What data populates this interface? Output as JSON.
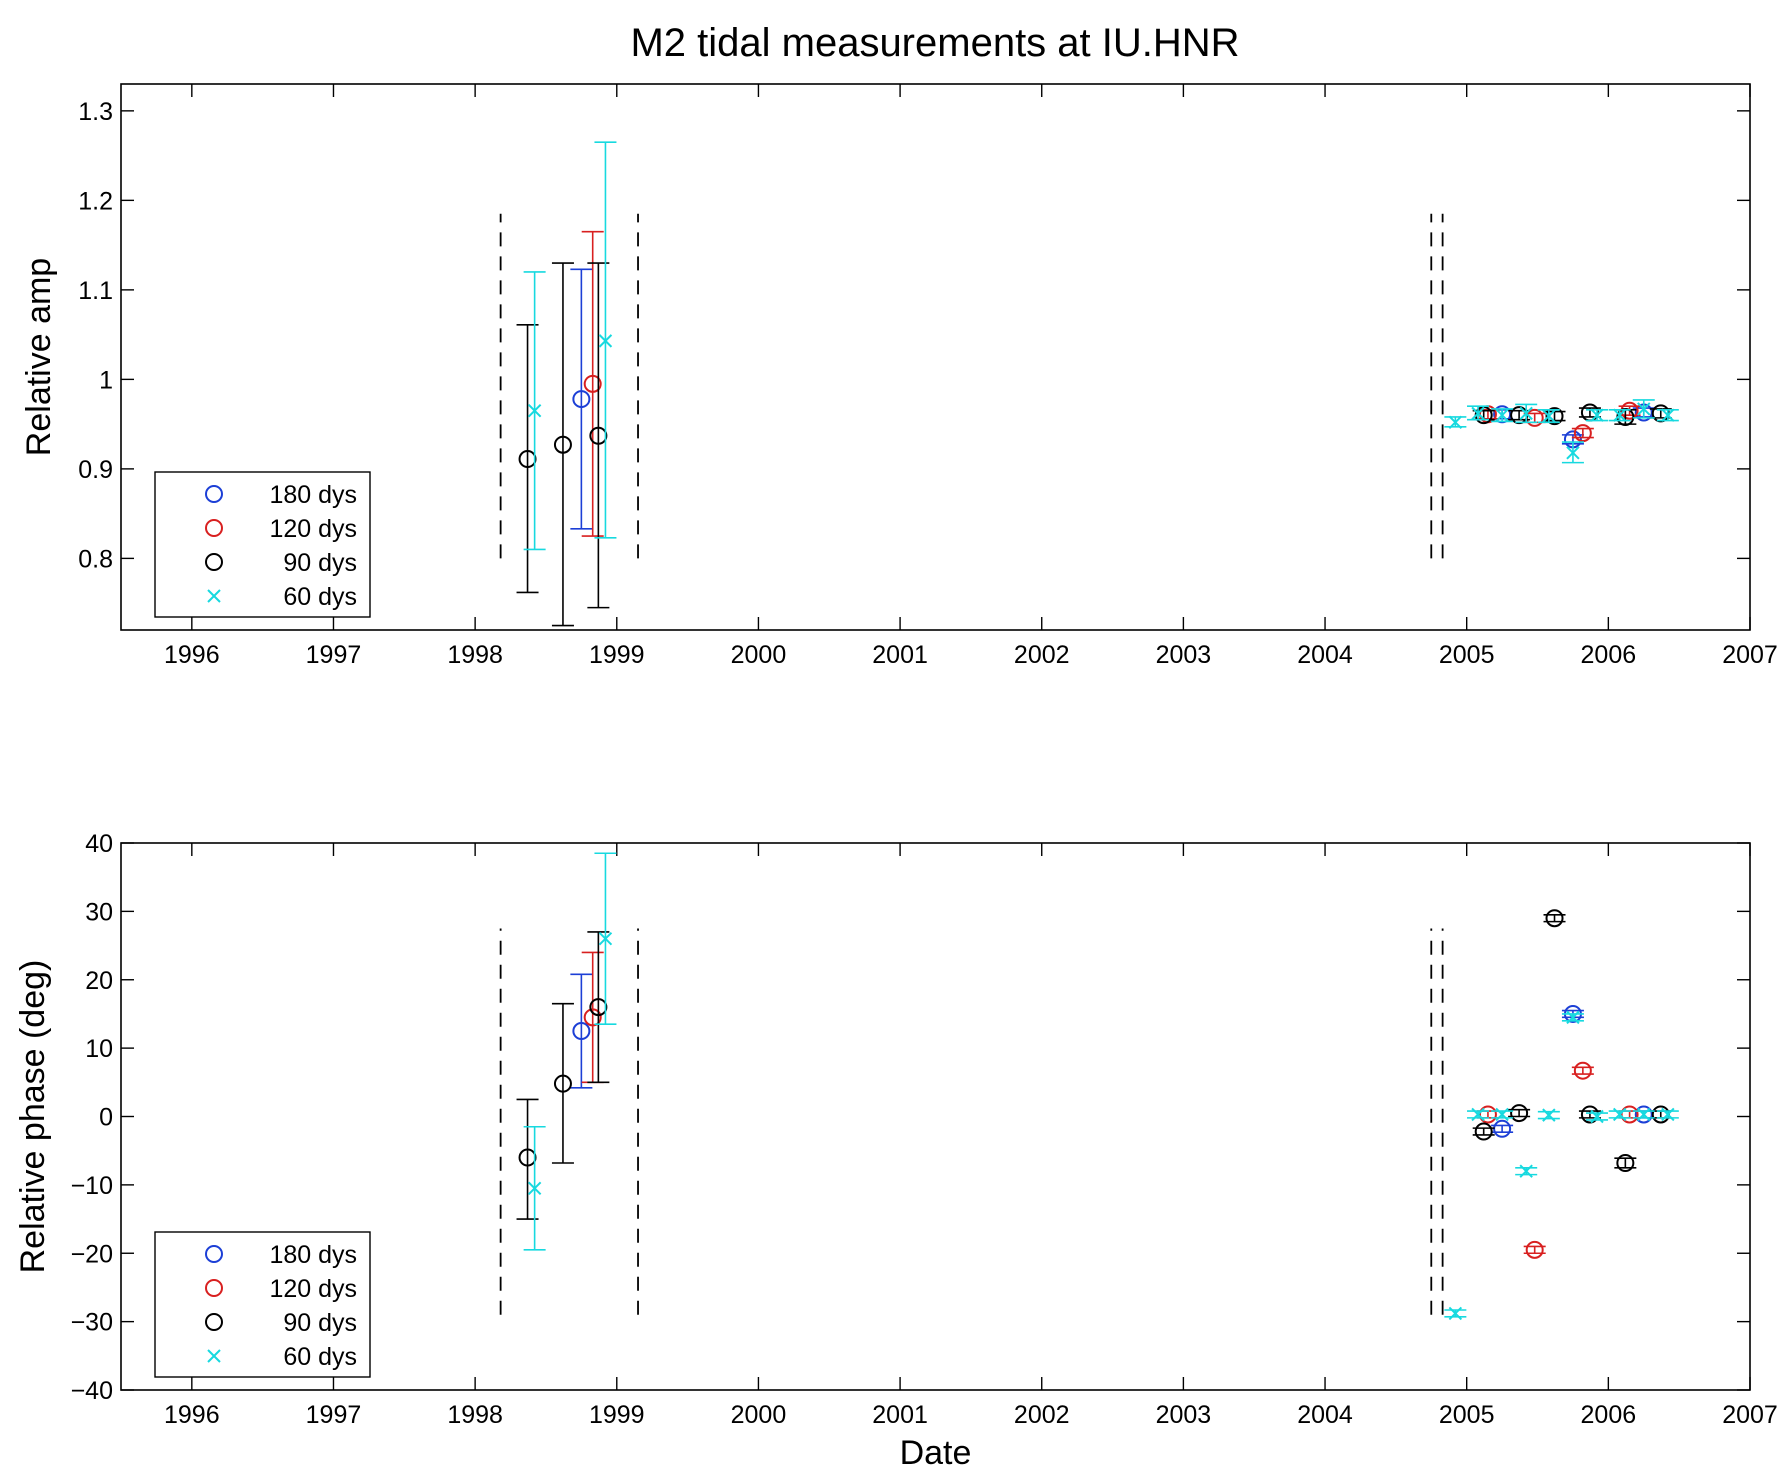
{
  "title": "M2 tidal measurements at IU.HNR",
  "colors": {
    "180 dys": "#1c3fd6",
    "120 dys": "#d82020",
    "90 dys": "#000000",
    "60 dys": "#17d9df"
  },
  "chart_data": [
    {
      "type": "scatter",
      "ylabel": "Relative amp",
      "xlabel": "",
      "xlim": [
        1995.5,
        2007
      ],
      "ylim": [
        0.72,
        1.33
      ],
      "xticks": [
        1996,
        1997,
        1998,
        1999,
        2000,
        2001,
        2002,
        2003,
        2004,
        2005,
        2006,
        2007
      ],
      "yticks": [
        0.8,
        0.9,
        1,
        1.1,
        1.2,
        1.3
      ],
      "ytick_labels": [
        "0.8",
        "0.9",
        "1",
        "1.1",
        "1.2",
        "1.3"
      ],
      "legend": [
        "180 dys",
        "120 dys",
        "90 dys",
        "60 dys"
      ],
      "legend_position": "lower-left",
      "error_bars": true,
      "vlines": [
        {
          "x": 1998.18,
          "y": [
            0.8,
            1.185
          ]
        },
        {
          "x": 1999.15,
          "y": [
            0.8,
            1.185
          ]
        },
        {
          "x": 2004.75,
          "y": [
            0.8,
            1.185
          ]
        },
        {
          "x": 2004.83,
          "y": [
            0.8,
            1.185
          ]
        }
      ],
      "series": [
        {
          "name": "180 dys",
          "marker": "o",
          "points": [
            {
              "x": 1998.75,
              "y": 0.978,
              "lo": 0.833,
              "hi": 1.123
            },
            {
              "x": 2005.25,
              "y": 0.961,
              "lo": 0.956,
              "hi": 0.966
            },
            {
              "x": 2005.75,
              "y": 0.933,
              "lo": 0.928,
              "hi": 0.938
            },
            {
              "x": 2006.25,
              "y": 0.963,
              "lo": 0.958,
              "hi": 0.968
            }
          ]
        },
        {
          "name": "120 dys",
          "marker": "o",
          "points": [
            {
              "x": 1998.83,
              "y": 0.995,
              "lo": 0.825,
              "hi": 1.165
            },
            {
              "x": 2005.15,
              "y": 0.961,
              "lo": 0.956,
              "hi": 0.966
            },
            {
              "x": 2005.48,
              "y": 0.957,
              "lo": 0.952,
              "hi": 0.962
            },
            {
              "x": 2005.82,
              "y": 0.94,
              "lo": 0.935,
              "hi": 0.945
            },
            {
              "x": 2006.15,
              "y": 0.965,
              "lo": 0.96,
              "hi": 0.97
            }
          ]
        },
        {
          "name": "90 dys",
          "marker": "o",
          "points": [
            {
              "x": 1998.37,
              "y": 0.911,
              "lo": 0.762,
              "hi": 1.061
            },
            {
              "x": 1998.62,
              "y": 0.927,
              "lo": 0.725,
              "hi": 1.13
            },
            {
              "x": 1998.87,
              "y": 0.937,
              "lo": 0.745,
              "hi": 1.13
            },
            {
              "x": 2005.12,
              "y": 0.96,
              "lo": 0.955,
              "hi": 0.965
            },
            {
              "x": 2005.37,
              "y": 0.96,
              "lo": 0.955,
              "hi": 0.965
            },
            {
              "x": 2005.62,
              "y": 0.959,
              "lo": 0.954,
              "hi": 0.964
            },
            {
              "x": 2005.87,
              "y": 0.963,
              "lo": 0.958,
              "hi": 0.968
            },
            {
              "x": 2006.12,
              "y": 0.958,
              "lo": 0.95,
              "hi": 0.966
            },
            {
              "x": 2006.37,
              "y": 0.962,
              "lo": 0.957,
              "hi": 0.967
            }
          ]
        },
        {
          "name": "60 dys",
          "marker": "x",
          "points": [
            {
              "x": 1998.42,
              "y": 0.965,
              "lo": 0.81,
              "hi": 1.12
            },
            {
              "x": 1998.92,
              "y": 1.043,
              "lo": 0.823,
              "hi": 1.265
            },
            {
              "x": 2004.92,
              "y": 0.952,
              "lo": 0.947,
              "hi": 0.958
            },
            {
              "x": 2005.08,
              "y": 0.962,
              "lo": 0.955,
              "hi": 0.97
            },
            {
              "x": 2005.25,
              "y": 0.96,
              "lo": 0.953,
              "hi": 0.967
            },
            {
              "x": 2005.42,
              "y": 0.962,
              "lo": 0.952,
              "hi": 0.972
            },
            {
              "x": 2005.58,
              "y": 0.959,
              "lo": 0.952,
              "hi": 0.966
            },
            {
              "x": 2005.75,
              "y": 0.918,
              "lo": 0.907,
              "hi": 0.93
            },
            {
              "x": 2005.92,
              "y": 0.96,
              "lo": 0.954,
              "hi": 0.966
            },
            {
              "x": 2006.08,
              "y": 0.96,
              "lo": 0.954,
              "hi": 0.966
            },
            {
              "x": 2006.25,
              "y": 0.967,
              "lo": 0.957,
              "hi": 0.977
            },
            {
              "x": 2006.42,
              "y": 0.96,
              "lo": 0.954,
              "hi": 0.966
            }
          ]
        }
      ]
    },
    {
      "type": "scatter",
      "ylabel": "Relative phase (deg)",
      "xlabel": "Date",
      "xlim": [
        1995.5,
        2007
      ],
      "ylim": [
        -40,
        40
      ],
      "xticks": [
        1996,
        1997,
        1998,
        1999,
        2000,
        2001,
        2002,
        2003,
        2004,
        2005,
        2006,
        2007
      ],
      "yticks": [
        -40,
        -30,
        -20,
        -10,
        0,
        10,
        20,
        30,
        40
      ],
      "ytick_labels": [
        "−40",
        "−30",
        "−20",
        "−10",
        "0",
        "10",
        "20",
        "30",
        "40"
      ],
      "legend": [
        "180 dys",
        "120 dys",
        "90 dys",
        "60 dys"
      ],
      "legend_position": "lower-left",
      "error_bars": true,
      "vlines": [
        {
          "x": 1998.18,
          "y": [
            -29,
            27.5
          ]
        },
        {
          "x": 1999.15,
          "y": [
            -29,
            27.5
          ]
        },
        {
          "x": 2004.75,
          "y": [
            -29,
            27.5
          ]
        },
        {
          "x": 2004.83,
          "y": [
            -29,
            27.5
          ]
        }
      ],
      "series": [
        {
          "name": "180 dys",
          "marker": "o",
          "points": [
            {
              "x": 1998.75,
              "y": 12.5,
              "lo": 4.2,
              "hi": 20.8
            },
            {
              "x": 2005.25,
              "y": -1.8,
              "lo": -2.3,
              "hi": -1.3
            },
            {
              "x": 2005.75,
              "y": 15.0,
              "lo": 14.5,
              "hi": 15.5
            },
            {
              "x": 2006.25,
              "y": 0.3,
              "lo": -0.2,
              "hi": 0.8
            }
          ]
        },
        {
          "name": "120 dys",
          "marker": "o",
          "points": [
            {
              "x": 1998.83,
              "y": 14.5,
              "lo": 5.0,
              "hi": 24.0
            },
            {
              "x": 2005.15,
              "y": 0.3,
              "lo": -0.2,
              "hi": 0.8
            },
            {
              "x": 2005.48,
              "y": -19.5,
              "lo": -20.0,
              "hi": -19.0
            },
            {
              "x": 2005.82,
              "y": 6.7,
              "lo": 6.2,
              "hi": 7.2
            },
            {
              "x": 2006.15,
              "y": 0.3,
              "lo": -0.2,
              "hi": 0.8
            }
          ]
        },
        {
          "name": "90 dys",
          "marker": "o",
          "points": [
            {
              "x": 1998.37,
              "y": -6.0,
              "lo": -15.0,
              "hi": 2.5
            },
            {
              "x": 1998.62,
              "y": 4.8,
              "lo": -6.8,
              "hi": 16.5
            },
            {
              "x": 1998.87,
              "y": 16.0,
              "lo": 5.0,
              "hi": 27.0
            },
            {
              "x": 2005.12,
              "y": -2.2,
              "lo": -2.7,
              "hi": -1.7
            },
            {
              "x": 2005.37,
              "y": 0.5,
              "lo": 0.0,
              "hi": 1.0
            },
            {
              "x": 2005.62,
              "y": 29.0,
              "lo": 28.5,
              "hi": 29.5
            },
            {
              "x": 2005.87,
              "y": 0.3,
              "lo": -0.2,
              "hi": 0.8
            },
            {
              "x": 2006.12,
              "y": -6.8,
              "lo": -7.5,
              "hi": -6.1
            },
            {
              "x": 2006.37,
              "y": 0.3,
              "lo": -0.2,
              "hi": 0.8
            }
          ]
        },
        {
          "name": "60 dys",
          "marker": "x",
          "points": [
            {
              "x": 1998.42,
              "y": -10.5,
              "lo": -19.5,
              "hi": -1.5
            },
            {
              "x": 1998.92,
              "y": 26.0,
              "lo": 13.5,
              "hi": 38.5
            },
            {
              "x": 2004.92,
              "y": -28.8,
              "lo": -29.3,
              "hi": -28.3
            },
            {
              "x": 2005.08,
              "y": 0.3,
              "lo": -0.2,
              "hi": 0.8
            },
            {
              "x": 2005.25,
              "y": 0.3,
              "lo": -0.2,
              "hi": 0.8
            },
            {
              "x": 2005.42,
              "y": -8.0,
              "lo": -8.5,
              "hi": -7.5
            },
            {
              "x": 2005.58,
              "y": 0.2,
              "lo": -0.3,
              "hi": 0.7
            },
            {
              "x": 2005.75,
              "y": 14.5,
              "lo": 14.0,
              "hi": 15.0
            },
            {
              "x": 2005.92,
              "y": 0.0,
              "lo": -0.5,
              "hi": 0.5
            },
            {
              "x": 2006.08,
              "y": 0.3,
              "lo": -0.2,
              "hi": 0.8
            },
            {
              "x": 2006.25,
              "y": 0.3,
              "lo": -0.2,
              "hi": 0.8
            },
            {
              "x": 2006.42,
              "y": 0.3,
              "lo": -0.2,
              "hi": 0.8
            }
          ]
        }
      ]
    }
  ]
}
